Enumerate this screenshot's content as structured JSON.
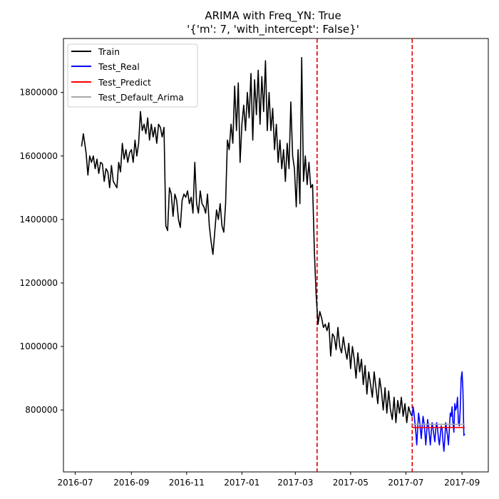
{
  "chart_data": {
    "type": "line",
    "title": "ARIMA with Freq_YN: True",
    "subtitle": "'{'m': 7, 'with_intercept': False}'",
    "xlabel": "",
    "ylabel": "",
    "x_range": [
      "2016-06-18",
      "2017-09-30"
    ],
    "ylim": [
      605000,
      1970000
    ],
    "grid": false,
    "legend_position": "top-left",
    "x_ticks": [
      {
        "date": "2016-07-01",
        "label": "2016-07"
      },
      {
        "date": "2016-09-01",
        "label": "2016-09"
      },
      {
        "date": "2016-11-01",
        "label": "2016-11"
      },
      {
        "date": "2017-01-01",
        "label": "2017-01"
      },
      {
        "date": "2017-03-01",
        "label": "2017-03"
      },
      {
        "date": "2017-05-01",
        "label": "2017-05"
      },
      {
        "date": "2017-07-01",
        "label": "2017-07"
      },
      {
        "date": "2017-09-01",
        "label": "2017-09"
      }
    ],
    "y_ticks": [
      800000,
      1000000,
      1200000,
      1400000,
      1600000,
      1800000
    ],
    "vlines": [
      {
        "date": "2017-03-25",
        "color": "#e00000",
        "style": "dashed"
      },
      {
        "date": "2017-07-08",
        "color": "#e00000",
        "style": "dashed"
      }
    ],
    "series": [
      {
        "name": "Train",
        "color": "#000000",
        "points": [
          [
            "2016-07-08",
            1630000
          ],
          [
            "2016-07-10",
            1670000
          ],
          [
            "2016-07-13",
            1610000
          ],
          [
            "2016-07-15",
            1540000
          ],
          [
            "2016-07-17",
            1600000
          ],
          [
            "2016-07-19",
            1580000
          ],
          [
            "2016-07-21",
            1600000
          ],
          [
            "2016-07-23",
            1560000
          ],
          [
            "2016-07-25",
            1590000
          ],
          [
            "2016-07-27",
            1545000
          ],
          [
            "2016-07-29",
            1580000
          ],
          [
            "2016-07-31",
            1575000
          ],
          [
            "2016-08-02",
            1520000
          ],
          [
            "2016-08-04",
            1560000
          ],
          [
            "2016-08-06",
            1550000
          ],
          [
            "2016-08-08",
            1500000
          ],
          [
            "2016-08-10",
            1570000
          ],
          [
            "2016-08-12",
            1520000
          ],
          [
            "2016-08-14",
            1510000
          ],
          [
            "2016-08-16",
            1500000
          ],
          [
            "2016-08-18",
            1580000
          ],
          [
            "2016-08-20",
            1550000
          ],
          [
            "2016-08-22",
            1640000
          ],
          [
            "2016-08-24",
            1590000
          ],
          [
            "2016-08-26",
            1620000
          ],
          [
            "2016-08-28",
            1580000
          ],
          [
            "2016-08-30",
            1610000
          ],
          [
            "2016-09-01",
            1620000
          ],
          [
            "2016-09-03",
            1580000
          ],
          [
            "2016-09-05",
            1650000
          ],
          [
            "2016-09-07",
            1600000
          ],
          [
            "2016-09-09",
            1640000
          ],
          [
            "2016-09-11",
            1740000
          ],
          [
            "2016-09-13",
            1680000
          ],
          [
            "2016-09-15",
            1700000
          ],
          [
            "2016-09-17",
            1670000
          ],
          [
            "2016-09-19",
            1720000
          ],
          [
            "2016-09-21",
            1650000
          ],
          [
            "2016-09-23",
            1700000
          ],
          [
            "2016-09-25",
            1660000
          ],
          [
            "2016-09-27",
            1690000
          ],
          [
            "2016-09-29",
            1640000
          ],
          [
            "2016-10-01",
            1700000
          ],
          [
            "2016-10-03",
            1690000
          ],
          [
            "2016-10-05",
            1660000
          ],
          [
            "2016-10-07",
            1690000
          ],
          [
            "2016-10-09",
            1380000
          ],
          [
            "2016-10-11",
            1365000
          ],
          [
            "2016-10-13",
            1500000
          ],
          [
            "2016-10-15",
            1480000
          ],
          [
            "2016-10-17",
            1410000
          ],
          [
            "2016-10-19",
            1480000
          ],
          [
            "2016-10-21",
            1460000
          ],
          [
            "2016-10-23",
            1400000
          ],
          [
            "2016-10-25",
            1375000
          ],
          [
            "2016-10-27",
            1460000
          ],
          [
            "2016-10-29",
            1480000
          ],
          [
            "2016-10-31",
            1470000
          ],
          [
            "2016-11-02",
            1490000
          ],
          [
            "2016-11-04",
            1450000
          ],
          [
            "2016-11-06",
            1470000
          ],
          [
            "2016-11-08",
            1420000
          ],
          [
            "2016-11-10",
            1580000
          ],
          [
            "2016-11-12",
            1450000
          ],
          [
            "2016-11-14",
            1420000
          ],
          [
            "2016-11-16",
            1490000
          ],
          [
            "2016-11-18",
            1450000
          ],
          [
            "2016-11-20",
            1440000
          ],
          [
            "2016-11-22",
            1420000
          ],
          [
            "2016-11-24",
            1480000
          ],
          [
            "2016-11-26",
            1380000
          ],
          [
            "2016-11-28",
            1330000
          ],
          [
            "2016-11-30",
            1290000
          ],
          [
            "2016-12-02",
            1360000
          ],
          [
            "2016-12-04",
            1430000
          ],
          [
            "2016-12-06",
            1400000
          ],
          [
            "2016-12-08",
            1450000
          ],
          [
            "2016-12-10",
            1380000
          ],
          [
            "2016-12-12",
            1360000
          ],
          [
            "2016-12-14",
            1450000
          ],
          [
            "2016-12-16",
            1650000
          ],
          [
            "2016-12-18",
            1620000
          ],
          [
            "2016-12-20",
            1700000
          ],
          [
            "2016-12-22",
            1640000
          ],
          [
            "2016-12-24",
            1820000
          ],
          [
            "2016-12-26",
            1680000
          ],
          [
            "2016-12-28",
            1830000
          ],
          [
            "2016-12-30",
            1580000
          ],
          [
            "2017-01-01",
            1700000
          ],
          [
            "2017-01-03",
            1760000
          ],
          [
            "2017-01-05",
            1680000
          ],
          [
            "2017-01-07",
            1800000
          ],
          [
            "2017-01-09",
            1720000
          ],
          [
            "2017-01-11",
            1860000
          ],
          [
            "2017-01-13",
            1650000
          ],
          [
            "2017-01-15",
            1840000
          ],
          [
            "2017-01-17",
            1730000
          ],
          [
            "2017-01-19",
            1870000
          ],
          [
            "2017-01-21",
            1700000
          ],
          [
            "2017-01-23",
            1850000
          ],
          [
            "2017-01-25",
            1740000
          ],
          [
            "2017-01-27",
            1900000
          ],
          [
            "2017-01-29",
            1680000
          ],
          [
            "2017-01-31",
            1800000
          ],
          [
            "2017-02-02",
            1680000
          ],
          [
            "2017-02-04",
            1750000
          ],
          [
            "2017-02-06",
            1620000
          ],
          [
            "2017-02-08",
            1700000
          ],
          [
            "2017-02-10",
            1580000
          ],
          [
            "2017-02-12",
            1650000
          ],
          [
            "2017-02-14",
            1560000
          ],
          [
            "2017-02-16",
            1620000
          ],
          [
            "2017-02-18",
            1520000
          ],
          [
            "2017-02-20",
            1640000
          ],
          [
            "2017-02-22",
            1560000
          ],
          [
            "2017-02-24",
            1770000
          ],
          [
            "2017-02-26",
            1600000
          ],
          [
            "2017-02-28",
            1560000
          ],
          [
            "2017-03-02",
            1440000
          ],
          [
            "2017-03-04",
            1620000
          ],
          [
            "2017-03-06",
            1450000
          ],
          [
            "2017-03-08",
            1910000
          ],
          [
            "2017-03-10",
            1520000
          ],
          [
            "2017-03-12",
            1600000
          ],
          [
            "2017-03-14",
            1510000
          ],
          [
            "2017-03-16",
            1580000
          ],
          [
            "2017-03-18",
            1500000
          ],
          [
            "2017-03-20",
            1510000
          ],
          [
            "2017-03-22",
            1300000
          ],
          [
            "2017-03-24",
            1160000
          ],
          [
            "2017-03-26",
            1070000
          ],
          [
            "2017-03-28",
            1110000
          ],
          [
            "2017-03-30",
            1090000
          ],
          [
            "2017-04-01",
            1060000
          ],
          [
            "2017-04-03",
            1070000
          ],
          [
            "2017-04-05",
            1050000
          ],
          [
            "2017-04-07",
            1075000
          ],
          [
            "2017-04-09",
            970000
          ],
          [
            "2017-04-11",
            1040000
          ],
          [
            "2017-04-13",
            1030000
          ],
          [
            "2017-04-15",
            990000
          ],
          [
            "2017-04-17",
            1060000
          ],
          [
            "2017-04-19",
            1000000
          ],
          [
            "2017-04-21",
            980000
          ],
          [
            "2017-04-23",
            1030000
          ],
          [
            "2017-04-25",
            990000
          ],
          [
            "2017-04-27",
            960000
          ],
          [
            "2017-04-29",
            1010000
          ],
          [
            "2017-05-01",
            930000
          ],
          [
            "2017-05-03",
            1000000
          ],
          [
            "2017-05-05",
            960000
          ],
          [
            "2017-05-07",
            900000
          ],
          [
            "2017-05-09",
            980000
          ],
          [
            "2017-05-11",
            920000
          ],
          [
            "2017-05-13",
            960000
          ],
          [
            "2017-05-15",
            880000
          ],
          [
            "2017-05-17",
            940000
          ],
          [
            "2017-05-19",
            850000
          ],
          [
            "2017-05-21",
            920000
          ],
          [
            "2017-05-23",
            880000
          ],
          [
            "2017-05-25",
            840000
          ],
          [
            "2017-05-27",
            920000
          ],
          [
            "2017-05-29",
            870000
          ],
          [
            "2017-05-31",
            820000
          ],
          [
            "2017-06-02",
            900000
          ],
          [
            "2017-06-04",
            860000
          ],
          [
            "2017-06-06",
            800000
          ],
          [
            "2017-06-08",
            870000
          ],
          [
            "2017-06-10",
            790000
          ],
          [
            "2017-06-12",
            860000
          ],
          [
            "2017-06-14",
            800000
          ],
          [
            "2017-06-16",
            770000
          ],
          [
            "2017-06-18",
            840000
          ],
          [
            "2017-06-20",
            760000
          ],
          [
            "2017-06-22",
            830000
          ],
          [
            "2017-06-24",
            790000
          ],
          [
            "2017-06-26",
            840000
          ],
          [
            "2017-06-28",
            780000
          ],
          [
            "2017-06-30",
            820000
          ],
          [
            "2017-07-02",
            760000
          ],
          [
            "2017-07-04",
            810000
          ],
          [
            "2017-07-06",
            790000
          ],
          [
            "2017-07-08",
            780000
          ]
        ]
      },
      {
        "name": "Test_Real",
        "color": "#0000ff",
        "points": [
          [
            "2017-07-08",
            780000
          ],
          [
            "2017-07-09",
            810000
          ],
          [
            "2017-07-10",
            790000
          ],
          [
            "2017-07-11",
            760000
          ],
          [
            "2017-07-12",
            730000
          ],
          [
            "2017-07-13",
            690000
          ],
          [
            "2017-07-14",
            740000
          ],
          [
            "2017-07-15",
            790000
          ],
          [
            "2017-07-16",
            770000
          ],
          [
            "2017-07-17",
            740000
          ],
          [
            "2017-07-18",
            710000
          ],
          [
            "2017-07-19",
            750000
          ],
          [
            "2017-07-20",
            780000
          ],
          [
            "2017-07-21",
            760000
          ],
          [
            "2017-07-22",
            730000
          ],
          [
            "2017-07-23",
            690000
          ],
          [
            "2017-07-24",
            730000
          ],
          [
            "2017-07-25",
            770000
          ],
          [
            "2017-07-26",
            750000
          ],
          [
            "2017-07-27",
            720000
          ],
          [
            "2017-07-28",
            690000
          ],
          [
            "2017-07-29",
            730000
          ],
          [
            "2017-07-30",
            760000
          ],
          [
            "2017-07-31",
            740000
          ],
          [
            "2017-08-01",
            720000
          ],
          [
            "2017-08-02",
            700000
          ],
          [
            "2017-08-03",
            740000
          ],
          [
            "2017-08-04",
            760000
          ],
          [
            "2017-08-05",
            740000
          ],
          [
            "2017-08-06",
            710000
          ],
          [
            "2017-08-07",
            690000
          ],
          [
            "2017-08-08",
            720000
          ],
          [
            "2017-08-09",
            750000
          ],
          [
            "2017-08-10",
            740000
          ],
          [
            "2017-08-11",
            700000
          ],
          [
            "2017-08-12",
            670000
          ],
          [
            "2017-08-13",
            710000
          ],
          [
            "2017-08-14",
            760000
          ],
          [
            "2017-08-15",
            740000
          ],
          [
            "2017-08-16",
            720000
          ],
          [
            "2017-08-17",
            690000
          ],
          [
            "2017-08-18",
            740000
          ],
          [
            "2017-08-19",
            790000
          ],
          [
            "2017-08-20",
            780000
          ],
          [
            "2017-08-21",
            810000
          ],
          [
            "2017-08-22",
            760000
          ],
          [
            "2017-08-23",
            730000
          ],
          [
            "2017-08-24",
            820000
          ],
          [
            "2017-08-25",
            800000
          ],
          [
            "2017-08-26",
            810000
          ],
          [
            "2017-08-27",
            840000
          ],
          [
            "2017-08-28",
            760000
          ],
          [
            "2017-08-29",
            750000
          ],
          [
            "2017-08-30",
            800000
          ],
          [
            "2017-08-31",
            900000
          ],
          [
            "2017-09-01",
            920000
          ],
          [
            "2017-09-02",
            860000
          ],
          [
            "2017-09-03",
            720000
          ],
          [
            "2017-09-04",
            725000
          ]
        ]
      },
      {
        "name": "Test_Predict",
        "color": "#ff0000",
        "points": [
          [
            "2017-07-08",
            745000
          ],
          [
            "2017-09-04",
            745000
          ]
        ]
      },
      {
        "name": "Test_Default_Arima",
        "color": "#a9a9a9",
        "points": [
          [
            "2017-07-08",
            755000
          ],
          [
            "2017-09-04",
            755000
          ]
        ]
      }
    ]
  }
}
